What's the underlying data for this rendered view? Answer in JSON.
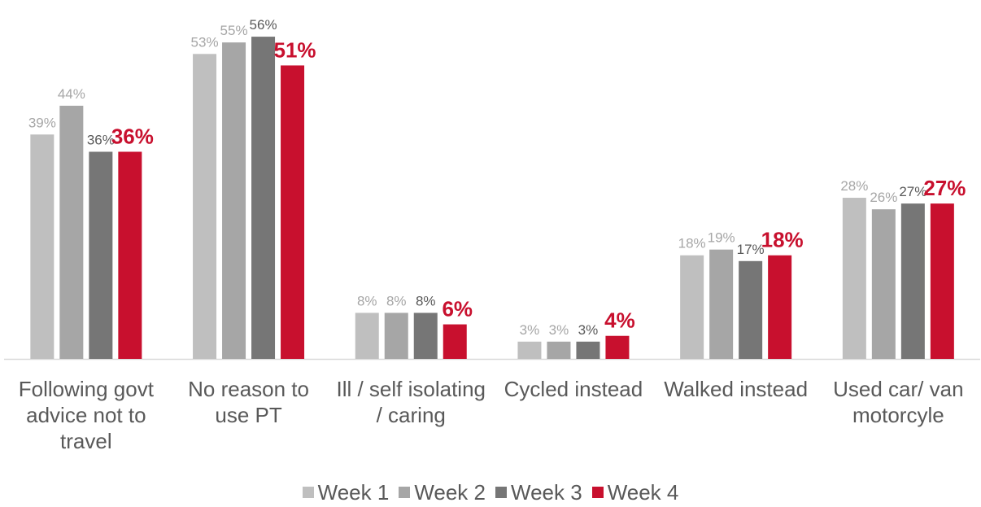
{
  "chart_data": {
    "type": "bar",
    "categories": [
      "Following govt advice not to travel",
      "No reason to use PT",
      "Ill / self isolating / caring",
      "Cycled instead",
      "Walked instead",
      "Used car/ van motorcyle"
    ],
    "series": [
      {
        "name": "Week 1",
        "color": "#bfbfbf",
        "values": [
          39,
          53,
          8,
          3,
          18,
          28
        ],
        "value_labels": [
          "39%",
          "53%",
          "8%",
          "3%",
          "18%",
          "28%"
        ]
      },
      {
        "name": "Week 2",
        "color": "#a6a6a6",
        "values": [
          44,
          55,
          8,
          3,
          19,
          26
        ],
        "value_labels": [
          "44%",
          "55%",
          "8%",
          "3%",
          "19%",
          "26%"
        ]
      },
      {
        "name": "Week 3",
        "color": "#767676",
        "values": [
          36,
          56,
          8,
          3,
          17,
          27
        ],
        "value_labels": [
          "36%",
          "56%",
          "8%",
          "3%",
          "17%",
          "27%"
        ]
      },
      {
        "name": "Week 4",
        "color": "#c8102e",
        "values": [
          36,
          51,
          6,
          4,
          18,
          27
        ],
        "value_labels": [
          "36%",
          "51%",
          "6%",
          "4%",
          "18%",
          "27%"
        ]
      }
    ]
  }
}
